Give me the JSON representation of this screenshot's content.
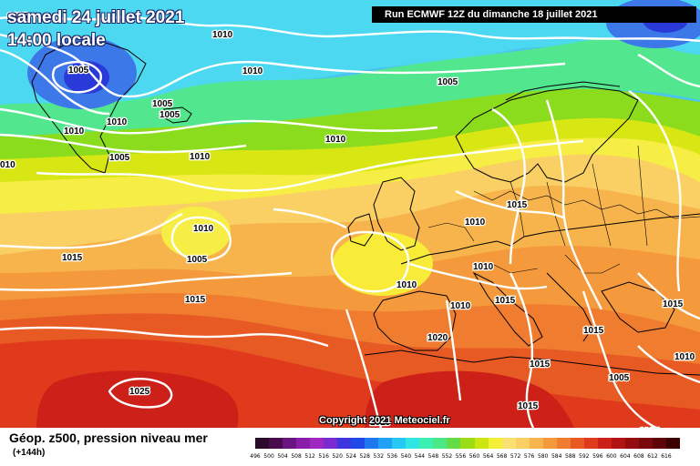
{
  "header": {
    "date_label": "samedi 24 juillet 2021",
    "time_label": "14:00 locale",
    "run_label": "Run ECMWF 12Z du dimanche 18 juillet 2021"
  },
  "footer": {
    "field_label": "Géop. z500, pression niveau mer",
    "lead_label": "(+144h)",
    "copyright": "Copyright 2021 Meteociel.fr"
  },
  "legend": {
    "values": [
      "496",
      "500",
      "504",
      "508",
      "512",
      "516",
      "520",
      "524",
      "528",
      "532",
      "536",
      "540",
      "544",
      "548",
      "552",
      "556",
      "560",
      "564",
      "568",
      "572",
      "576",
      "580",
      "584",
      "588",
      "592",
      "596",
      "600",
      "604",
      "608",
      "612",
      "616"
    ],
    "colors": [
      "#2b0a2b",
      "#4a0a4e",
      "#6a1480",
      "#8a1ea8",
      "#a028c0",
      "#7a2ad0",
      "#3c36dc",
      "#1f4ae8",
      "#1f78f0",
      "#22a2f4",
      "#28c8f4",
      "#30e6e4",
      "#3cf0b4",
      "#4ce888",
      "#64dc48",
      "#9cdc14",
      "#cce610",
      "#f4f038",
      "#fae070",
      "#fad064",
      "#f8b44c",
      "#f49a3c",
      "#f07c30",
      "#e85a24",
      "#e03a1c",
      "#cc2018",
      "#b01414",
      "#940c10",
      "#7a080c",
      "#5e0408",
      "#3a0000"
    ]
  },
  "map": {
    "isobar_labels": [
      {
        "text": "1005"
      },
      {
        "text": "1010"
      },
      {
        "text": "1010"
      },
      {
        "text": "1005"
      },
      {
        "text": "1005"
      },
      {
        "text": "1005"
      },
      {
        "text": "1010"
      },
      {
        "text": "1010"
      },
      {
        "text": "1005"
      },
      {
        "text": "1005"
      },
      {
        "text": "1010"
      },
      {
        "text": "1010"
      },
      {
        "text": "010"
      },
      {
        "text": "1010"
      },
      {
        "text": "1005"
      },
      {
        "text": "1015"
      },
      {
        "text": "1015"
      },
      {
        "text": "1015"
      },
      {
        "text": "1010"
      },
      {
        "text": "1010"
      },
      {
        "text": "1015"
      },
      {
        "text": "1010"
      },
      {
        "text": "1010"
      },
      {
        "text": "1020"
      },
      {
        "text": "1015"
      },
      {
        "text": "1015"
      },
      {
        "text": "1015"
      },
      {
        "text": "1025"
      },
      {
        "text": "1015"
      },
      {
        "text": "1015"
      },
      {
        "text": "1005"
      },
      {
        "text": "1010"
      },
      {
        "text": "1005"
      }
    ]
  }
}
